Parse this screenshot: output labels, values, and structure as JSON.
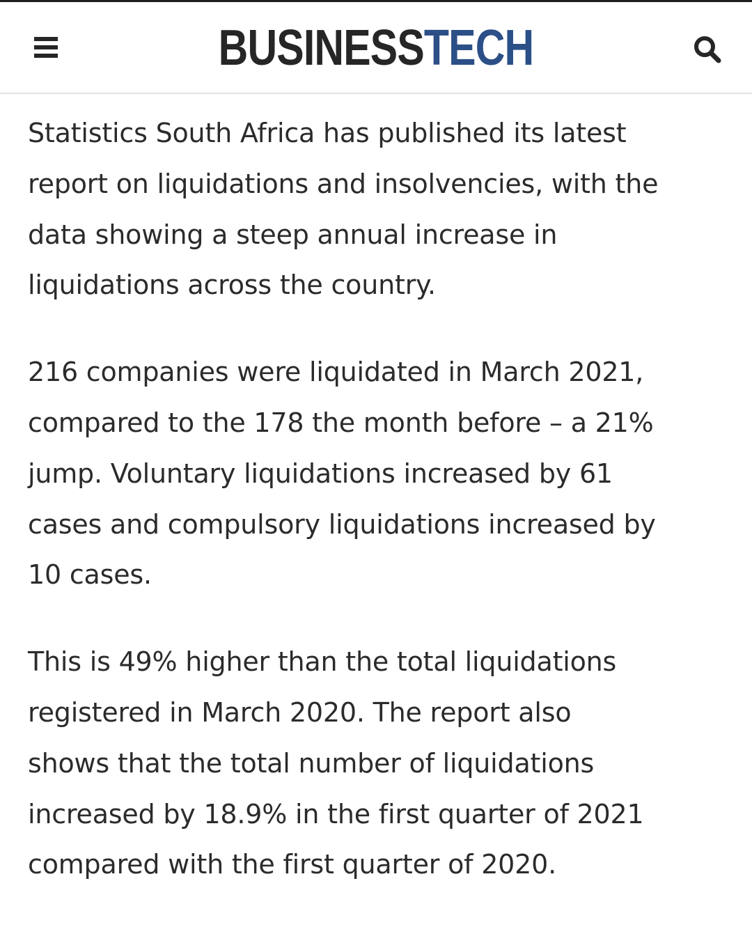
{
  "header": {
    "logo_part1": "BUSINESS",
    "logo_part2": "TECH",
    "menu_icon": "hamburger-menu-icon",
    "search_icon": "search-icon"
  },
  "colors": {
    "logo_dark": "#262626",
    "logo_accent": "#2c4f87",
    "text": "#2b2b2b",
    "divider": "#e2e2e2"
  },
  "article": {
    "paragraphs": [
      "Statistics South Africa has published its latest\nreport on liquidations and insolvencies, with the\ndata showing a steep annual increase in\nliquidations across the country.",
      "216 companies were liquidated in March 2021,\ncompared to the 178 the month before – a 21%\njump. Voluntary liquidations increased by 61\ncases and compulsory liquidations increased by\n10 cases.",
      "This is 49% higher than the total liquidations\nregistered in March 2020. The report also\nshows that the total number of liquidations\nincreased by 18.9% in the first quarter of 2021\ncompared with the first quarter of  2020."
    ]
  }
}
